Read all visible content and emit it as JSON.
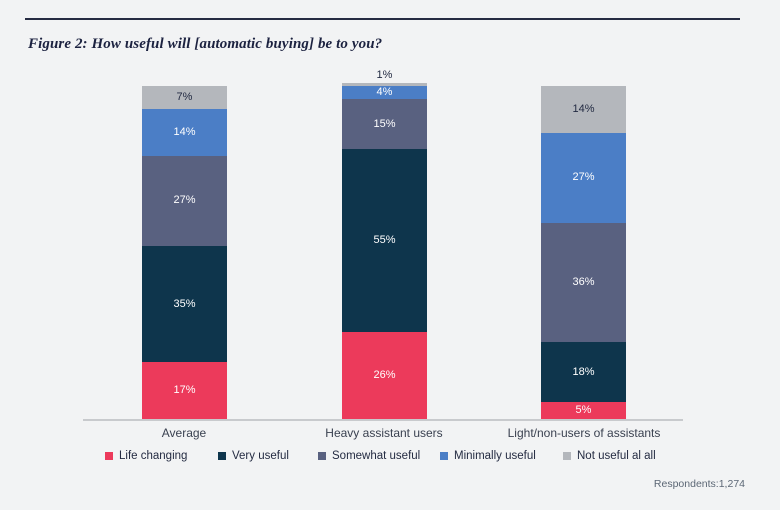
{
  "page": {
    "title": "Figure 2: How useful will [automatic buying] be to you?",
    "respondents_note": "Respondents:1,274"
  },
  "chart_data": {
    "type": "bar",
    "stacked": true,
    "title": "Figure 2: How useful will [automatic buying] be to you?",
    "categories": [
      "Average",
      "Heavy assistant users",
      "Light/non-users of assistants"
    ],
    "series": [
      {
        "name": "Life changing",
        "color": "#ec3a5b",
        "label_color": "#ffffff",
        "values": [
          17,
          26,
          5
        ]
      },
      {
        "name": "Very useful",
        "color": "#0e354c",
        "label_color": "#ffffff",
        "values": [
          35,
          55,
          18
        ]
      },
      {
        "name": "Somewhat useful",
        "color": "#596180",
        "label_color": "#ffffff",
        "values": [
          27,
          15,
          36
        ]
      },
      {
        "name": "Minimally useful",
        "color": "#4b7ec6",
        "label_color": "#ffffff",
        "values": [
          14,
          4,
          27
        ]
      },
      {
        "name": "Not useful al all",
        "color": "#b4b7bc",
        "label_color": "#222a42",
        "values": [
          7,
          1,
          14
        ]
      }
    ],
    "value_suffix": "%",
    "ylim": [
      0,
      100
    ],
    "grid": false,
    "legend_position": "bottom",
    "annotation": "Respondents:1,274"
  }
}
